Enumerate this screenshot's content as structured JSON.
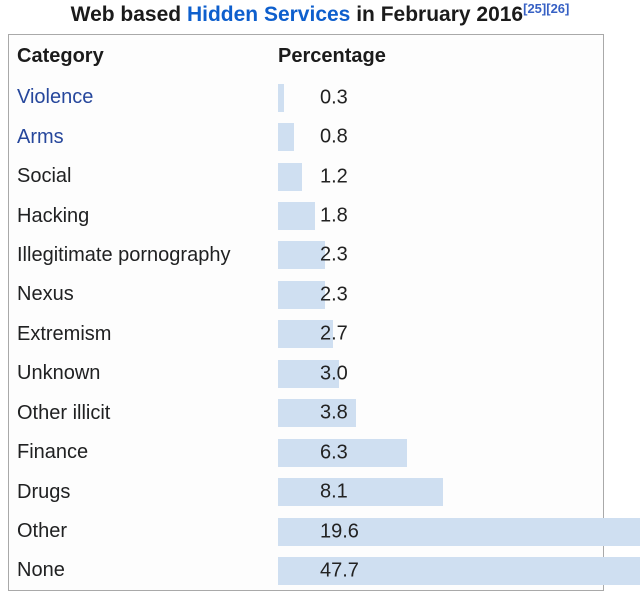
{
  "page": {
    "title": {
      "text_before_link": "Web based ",
      "link_text": "Hidden Services",
      "text_after_link": " in February 2016",
      "references": [
        "[25]",
        "[26]"
      ]
    }
  },
  "table": {
    "header": {
      "category": "Category",
      "percentage": "Percentage"
    }
  },
  "chart_data": {
    "type": "bar",
    "orientation": "horizontal",
    "title": "Web based Hidden Services in February 2016",
    "xlabel": "Percentage",
    "ylabel": "Category",
    "categories": [
      "Violence",
      "Arms",
      "Social",
      "Hacking",
      "Illegitimate pornography",
      "Nexus",
      "Extremism",
      "Unknown",
      "Other illicit",
      "Finance",
      "Drugs",
      "Other",
      "None"
    ],
    "values": [
      0.3,
      0.8,
      1.2,
      1.8,
      2.3,
      2.3,
      2.7,
      3.0,
      3.8,
      6.3,
      8.1,
      19.6,
      47.7
    ],
    "value_labels": [
      "0.3",
      "0.8",
      "1.2",
      "1.8",
      "2.3",
      "2.3",
      "2.7",
      "3.0",
      "3.8",
      "6.3",
      "8.1",
      "19.6",
      "47.7"
    ],
    "linked_categories": [
      "Violence",
      "Arms"
    ],
    "unit": "percent",
    "xlim": [
      0,
      47.7
    ],
    "grid": false,
    "legend": false,
    "bars_overflow_table_right_edge": true
  },
  "colors": {
    "bar_fill": "#cfdff1",
    "table_border": "#a9a9a9",
    "body_text": "#202122",
    "title_link": "#0e5fcd",
    "row_link": "#26479c",
    "reference_link": "#3660c4"
  }
}
